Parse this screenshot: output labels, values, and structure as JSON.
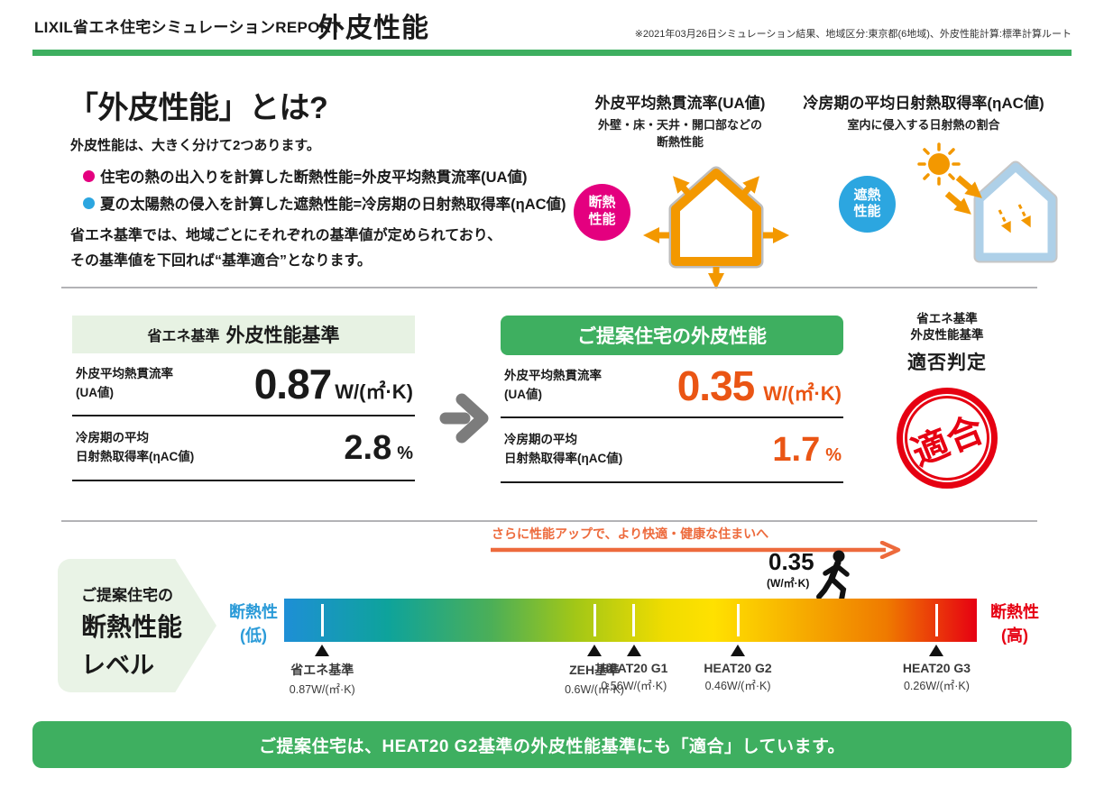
{
  "header": {
    "brand_line": "LIXIL省エネ住宅シミュレーションREPORT",
    "page_title": "外皮性能",
    "note": "※2021年03月26日シミュレーション結果、地域区分:東京都(6地域)、外皮性能計算:標準計算ルート"
  },
  "intro": {
    "title": "「外皮性能」とは?",
    "lead": "外皮性能は、大きく分けて2つあります。",
    "bullets": [
      {
        "color": "#e4007f",
        "text": "住宅の熱の出入りを計算した断熱性能=外皮平均熱貫流率(UA値)"
      },
      {
        "color": "#2ca6e0",
        "text": "夏の太陽熱の侵入を計算した遮熱性能=冷房期の日射熱取得率(ηAC値)"
      }
    ],
    "note_line1": "省エネ基準では、地域ごとにそれぞれの基準値が定められており、",
    "note_line2": "その基準値を下回れば“基準適合”となります。"
  },
  "diagrams": {
    "ua": {
      "title": "外皮平均熱貫流率(UA値)",
      "subtitle_line1": "外壁・床・天井・開口部などの",
      "subtitle_line2": "断熱性能",
      "badge_line1": "断熱",
      "badge_line2": "性能",
      "badge_color": "#e4007f"
    },
    "eta": {
      "title": "冷房期の平均日射熱取得率(ηAC値)",
      "subtitle": "室内に侵入する日射熱の割合",
      "badge_line1": "遮熱",
      "badge_line2": "性能",
      "badge_color": "#2ca6e0"
    }
  },
  "comparison": {
    "standard": {
      "header_prefix": "省エネ基準",
      "header_main": "外皮性能基準",
      "row1_label1": "外皮平均熱貫流率",
      "row1_label2": "(UA値)",
      "row1_value": "0.87",
      "row1_unit": "W/(㎡·K)",
      "row2_label1": "冷房期の平均",
      "row2_label2": "日射熱取得率(ηAC値)",
      "row2_value": "2.8",
      "row2_unit": "%"
    },
    "proposal": {
      "header": "ご提案住宅の外皮性能",
      "row1_label1": "外皮平均熱貫流率",
      "row1_label2": "(UA値)",
      "row1_value": "0.35",
      "row1_unit": "W/(㎡·K)",
      "row2_label1": "冷房期の平均",
      "row2_label2": "日射熱取得率(ηAC値)",
      "row2_value": "1.7",
      "row2_unit": "%"
    },
    "judgement": {
      "caption_line1": "省エネ基準",
      "caption_line2": "外皮性能基準",
      "caption_line3": "適否判定",
      "stamp_text": "適合"
    }
  },
  "scale": {
    "upgrade_note": "さらに性能アップで、より快適・健康な住まいへ",
    "marker_value": "0.35",
    "marker_unit": "(W/㎡·K)",
    "left_label_line1": "断熱性",
    "left_label_line2": "(低)",
    "right_label_line1": "断熱性",
    "right_label_line2": "(高)",
    "level_box_line1": "ご提案住宅の",
    "level_box_line2": "断熱性能",
    "level_box_line3": "レベル",
    "gradient": [
      "#1e8fd6 0%",
      "#0ea39b 15%",
      "#4caf57 30%",
      "#a2c717 42%",
      "#f0dc00 55%",
      "#ffe100 62%",
      "#f6ab00 75%",
      "#ef7a00 87%",
      "#e60012 100%"
    ],
    "ticks": [
      {
        "name": "省エネ基準",
        "value": "0.87W/(㎡·K)",
        "pos": 5.5
      },
      {
        "name": "ZEH基準",
        "value": "0.6W/(㎡·K)",
        "pos": 44.8
      },
      {
        "name": "HEAT20 G1",
        "value": "0.56W/(㎡·K)",
        "pos": 50.5
      },
      {
        "name": "HEAT20 G2",
        "value": "0.46W/(㎡·K)",
        "pos": 65.5
      },
      {
        "name": "HEAT20 G3",
        "value": "0.26W/(㎡·K)",
        "pos": 94.2
      }
    ]
  },
  "banner": {
    "text": "ご提案住宅は、HEAT20 G2基準の外皮性能基準にも「適合」しています。"
  },
  "colors": {
    "green": "#3eaf60",
    "light_green": "#e7f2e3",
    "level_box_green": "#e9f3e6",
    "magenta": "#e4007f",
    "blue": "#2ca6e0",
    "icon_orange": "#f39800",
    "value_orange": "#ea5514",
    "note_orange": "#ed6a3c",
    "red": "#e60012",
    "blue_label": "#2b9bd8",
    "gray_arrow": "#7c7c7c"
  }
}
